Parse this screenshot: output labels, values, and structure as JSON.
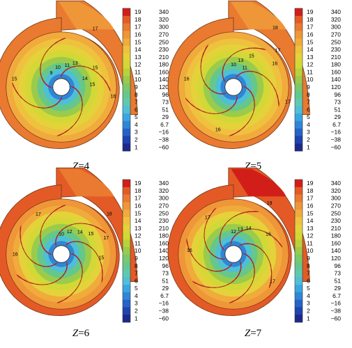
{
  "colors": {
    "c1": "#1a2a8c",
    "c2": "#1f44b0",
    "c3": "#2463c8",
    "c4": "#2f86d8",
    "c5": "#3aa6e0",
    "c6": "#4fbfd6",
    "c7": "#5fc8b0",
    "c8": "#66c78a",
    "c9": "#7cc86a",
    "c10": "#9acb4c",
    "c11": "#b8d23c",
    "c12": "#d2d836",
    "c13": "#e4d23a",
    "c14": "#eec23e",
    "c15": "#f0ab3c",
    "c16": "#ee9638",
    "c17": "#e97a30",
    "c18": "#e45a26",
    "c19": "#d21e18",
    "blade_fill": "#f3c9c9",
    "blade_edge": "#b02020",
    "hub": "#ffffff"
  },
  "legend": {
    "levels": [
      19,
      18,
      17,
      16,
      15,
      14,
      13,
      12,
      11,
      10,
      9,
      8,
      7,
      6,
      5,
      4,
      3,
      2,
      1
    ],
    "values": [
      "340",
      "320",
      "300",
      "270",
      "250",
      "230",
      "210",
      "180",
      "160",
      "140",
      "120",
      "96",
      "73",
      "51",
      "29",
      "6.7",
      "−16",
      "−38",
      "−60"
    ]
  },
  "panels": [
    {
      "var": "Z",
      "val": "4",
      "blades": 4,
      "volute_color": "c17",
      "tongue_color": "c16",
      "outer_ring": "c15",
      "mid_ring": "c14",
      "labels": [
        {
          "t": "17",
          "ang": 300,
          "r": 1.35
        },
        {
          "t": "16",
          "ang": 10,
          "r": 1.05
        },
        {
          "t": "15",
          "ang": 190,
          "r": 0.95
        },
        {
          "t": "15",
          "ang": 330,
          "r": 0.78
        },
        {
          "t": "15",
          "ang": 355,
          "r": 0.62
        },
        {
          "t": "14",
          "ang": 340,
          "r": 0.5
        },
        {
          "t": "13",
          "ang": 300,
          "r": 0.55
        },
        {
          "t": "11",
          "ang": 285,
          "r": 0.45
        },
        {
          "t": "10",
          "ang": 260,
          "r": 0.4
        },
        {
          "t": "9",
          "ang": 235,
          "r": 0.35
        }
      ]
    },
    {
      "var": "Z",
      "val": "5",
      "blades": 5,
      "volute_color": "c17",
      "tongue_color": "c16",
      "outer_ring": "c15",
      "mid_ring": "c14",
      "labels": [
        {
          "t": "18",
          "ang": 305,
          "r": 1.45
        },
        {
          "t": "17",
          "ang": 320,
          "r": 1.15
        },
        {
          "t": "16",
          "ang": 330,
          "r": 0.95
        },
        {
          "t": "17",
          "ang": 15,
          "r": 1.12
        },
        {
          "t": "16",
          "ang": 190,
          "r": 0.95
        },
        {
          "t": "16",
          "ang": 110,
          "r": 0.9
        },
        {
          "t": "15",
          "ang": 300,
          "r": 0.72
        },
        {
          "t": "13",
          "ang": 285,
          "r": 0.55
        },
        {
          "t": "10",
          "ang": 270,
          "r": 0.45
        },
        {
          "t": "11",
          "ang": 300,
          "r": 0.45
        }
      ]
    },
    {
      "var": "Z",
      "val": "6",
      "blades": 6,
      "volute_color": "c18",
      "tongue_color": "c17",
      "outer_ring": "c16",
      "mid_ring": "c15",
      "labels": [
        {
          "t": "18",
          "ang": 320,
          "r": 1.25
        },
        {
          "t": "17",
          "ang": 240,
          "r": 0.92
        },
        {
          "t": "17",
          "ang": 340,
          "r": 0.95
        },
        {
          "t": "16",
          "ang": 180,
          "r": 0.92
        },
        {
          "t": "15",
          "ang": 5,
          "r": 0.8
        },
        {
          "t": "15",
          "ang": 325,
          "r": 0.72
        },
        {
          "t": "14",
          "ang": 310,
          "r": 0.58
        },
        {
          "t": "12",
          "ang": 290,
          "r": 0.48
        },
        {
          "t": "10",
          "ang": 270,
          "r": 0.4
        }
      ]
    },
    {
      "var": "Z",
      "val": "7",
      "blades": 7,
      "volute_color": "c18",
      "tongue_color": "c19",
      "outer_ring": "c16",
      "mid_ring": "c15",
      "labels": [
        {
          "t": "19",
          "ang": 305,
          "r": 1.25
        },
        {
          "t": "17",
          "ang": 35,
          "r": 0.95
        },
        {
          "t": "17",
          "ang": 235,
          "r": 0.9
        },
        {
          "t": "16",
          "ang": 330,
          "r": 0.8
        },
        {
          "t": "16",
          "ang": 185,
          "r": 0.88
        },
        {
          "t": "14",
          "ang": 300,
          "r": 0.6
        },
        {
          "t": "13",
          "ang": 285,
          "r": 0.52
        },
        {
          "t": "12",
          "ang": 270,
          "r": 0.45
        }
      ]
    }
  ]
}
